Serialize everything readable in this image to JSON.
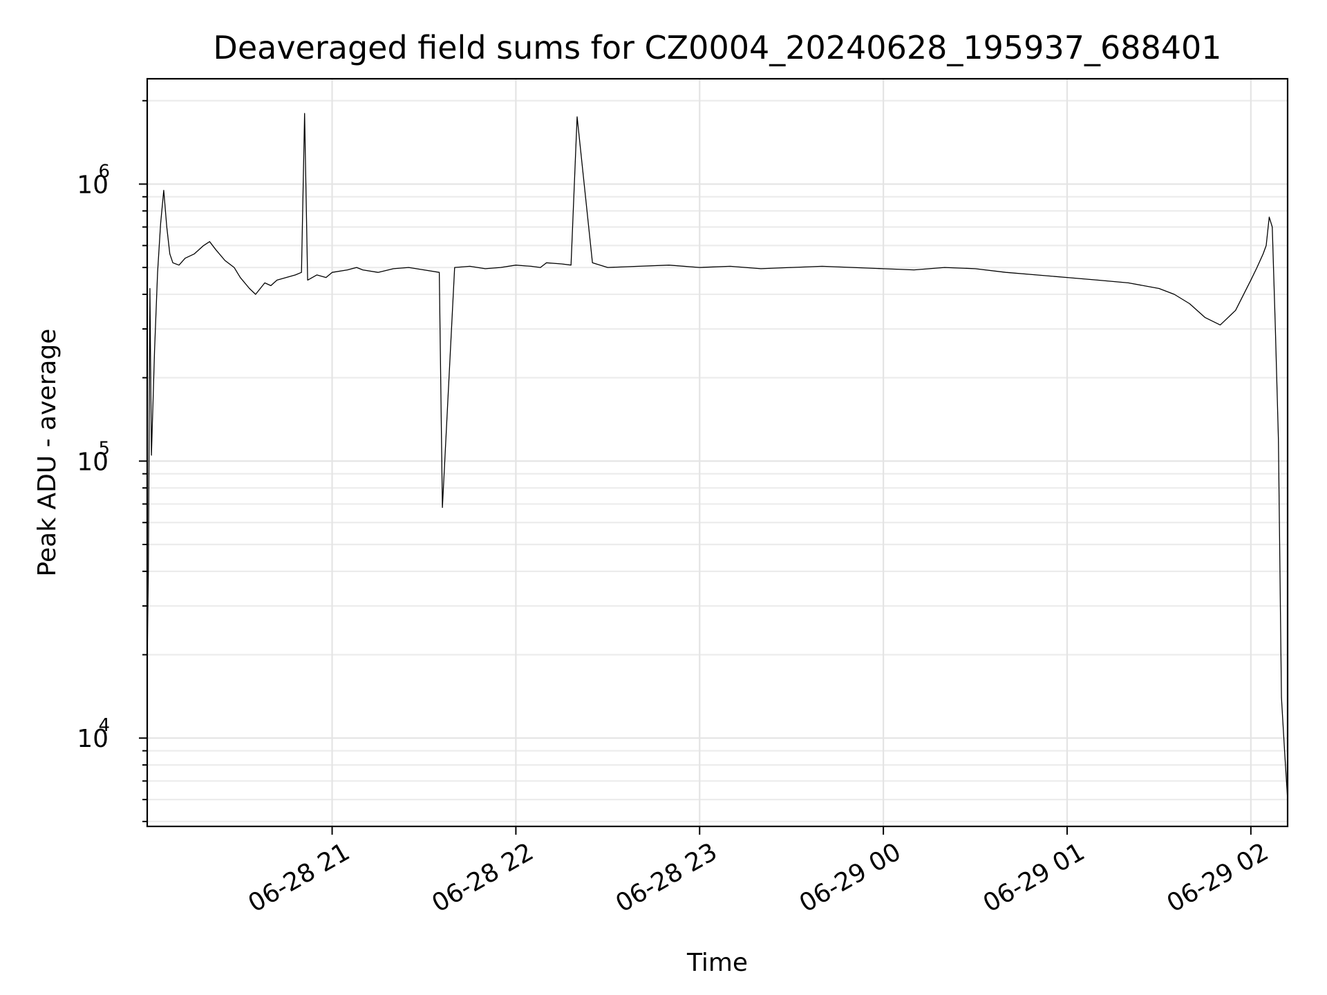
{
  "chart_data": {
    "type": "line",
    "title": "Deaveraged field sums for CZ0004_20240628_195937_688401",
    "xlabel": "Time",
    "ylabel": "Peak ADU - average",
    "x_scale": "time",
    "y_scale": "log",
    "xlim": [
      "2024-06-28 19:59:37",
      "2024-06-29 02:12:00"
    ],
    "ylim": [
      4800,
      2400000
    ],
    "x_ticks": [
      {
        "value": "2024-06-28 21:00",
        "label": "06-28 21"
      },
      {
        "value": "2024-06-28 22:00",
        "label": "06-28 22"
      },
      {
        "value": "2024-06-28 23:00",
        "label": "06-28 23"
      },
      {
        "value": "2024-06-29 00:00",
        "label": "06-29 00"
      },
      {
        "value": "2024-06-29 01:00",
        "label": "06-29 01"
      },
      {
        "value": "2024-06-29 02:00",
        "label": "06-29 02"
      }
    ],
    "y_ticks": [
      {
        "value": 10000,
        "base": "10",
        "exp": "4"
      },
      {
        "value": 100000,
        "base": "10",
        "exp": "5"
      },
      {
        "value": 1000000,
        "base": "10",
        "exp": "6"
      }
    ],
    "grid": true,
    "line_color": "#000000",
    "series": [
      {
        "x": [
          "2024-06-28 19:59:37",
          "2024-06-28 20:00:00",
          "2024-06-28 20:00:30",
          "2024-06-28 20:01:00",
          "2024-06-28 20:02:00",
          "2024-06-28 20:03:00",
          "2024-06-28 20:04:00",
          "2024-06-28 20:05:00",
          "2024-06-28 20:06:00",
          "2024-06-28 20:07:00",
          "2024-06-28 20:08:00",
          "2024-06-28 20:10:00",
          "2024-06-28 20:12:00",
          "2024-06-28 20:15:00",
          "2024-06-28 20:18:00",
          "2024-06-28 20:20:00",
          "2024-06-28 20:22:00",
          "2024-06-28 20:25:00",
          "2024-06-28 20:28:00",
          "2024-06-28 20:30:00",
          "2024-06-28 20:33:00",
          "2024-06-28 20:35:00",
          "2024-06-28 20:38:00",
          "2024-06-28 20:40:00",
          "2024-06-28 20:42:00",
          "2024-06-28 20:45:00",
          "2024-06-28 20:48:00",
          "2024-06-28 20:50:00",
          "2024-06-28 20:51:00",
          "2024-06-28 20:52:00",
          "2024-06-28 20:55:00",
          "2024-06-28 20:58:00",
          "2024-06-28 21:00:00",
          "2024-06-28 21:05:00",
          "2024-06-28 21:08:00",
          "2024-06-28 21:10:00",
          "2024-06-28 21:15:00",
          "2024-06-28 21:20:00",
          "2024-06-28 21:25:00",
          "2024-06-28 21:30:00",
          "2024-06-28 21:35:00",
          "2024-06-28 21:36:00",
          "2024-06-28 21:40:00",
          "2024-06-28 21:45:00",
          "2024-06-28 21:50:00",
          "2024-06-28 21:55:00",
          "2024-06-28 22:00:00",
          "2024-06-28 22:05:00",
          "2024-06-28 22:08:00",
          "2024-06-28 22:10:00",
          "2024-06-28 22:15:00",
          "2024-06-28 22:18:00",
          "2024-06-28 22:20:00",
          "2024-06-28 22:25:00",
          "2024-06-28 22:30:00",
          "2024-06-28 22:40:00",
          "2024-06-28 22:50:00",
          "2024-06-28 23:00:00",
          "2024-06-28 23:10:00",
          "2024-06-28 23:20:00",
          "2024-06-28 23:30:00",
          "2024-06-28 23:40:00",
          "2024-06-28 23:50:00",
          "2024-06-29 00:00:00",
          "2024-06-29 00:10:00",
          "2024-06-29 00:20:00",
          "2024-06-29 00:30:00",
          "2024-06-29 00:40:00",
          "2024-06-29 00:50:00",
          "2024-06-29 01:00:00",
          "2024-06-29 01:10:00",
          "2024-06-29 01:20:00",
          "2024-06-29 01:30:00",
          "2024-06-29 01:35:00",
          "2024-06-29 01:40:00",
          "2024-06-29 01:45:00",
          "2024-06-29 01:50:00",
          "2024-06-29 01:55:00",
          "2024-06-29 02:00:00",
          "2024-06-29 02:02:00",
          "2024-06-29 02:04:00",
          "2024-06-29 02:05:00",
          "2024-06-29 02:06:00",
          "2024-06-29 02:07:00",
          "2024-06-29 02:08:00",
          "2024-06-29 02:09:00",
          "2024-06-29 02:10:00",
          "2024-06-29 02:11:00",
          "2024-06-29 02:12:00"
        ],
        "y": [
          19000,
          40000,
          420000,
          105000,
          250000,
          480000,
          720000,
          950000,
          700000,
          560000,
          520000,
          510000,
          540000,
          560000,
          600000,
          620000,
          580000,
          530000,
          500000,
          460000,
          420000,
          400000,
          440000,
          430000,
          450000,
          460000,
          470000,
          480000,
          1800000,
          450000,
          470000,
          460000,
          480000,
          490000,
          500000,
          490000,
          480000,
          495000,
          500000,
          490000,
          480000,
          68000,
          500000,
          505000,
          495000,
          500000,
          510000,
          505000,
          500000,
          520000,
          515000,
          510000,
          1750000,
          520000,
          500000,
          505000,
          510000,
          500000,
          505000,
          495000,
          500000,
          505000,
          500000,
          495000,
          490000,
          500000,
          495000,
          480000,
          470000,
          460000,
          450000,
          440000,
          420000,
          400000,
          370000,
          330000,
          310000,
          350000,
          450000,
          500000,
          560000,
          600000,
          760000,
          700000,
          300000,
          120000,
          14000,
          9000,
          6000
        ]
      }
    ]
  }
}
